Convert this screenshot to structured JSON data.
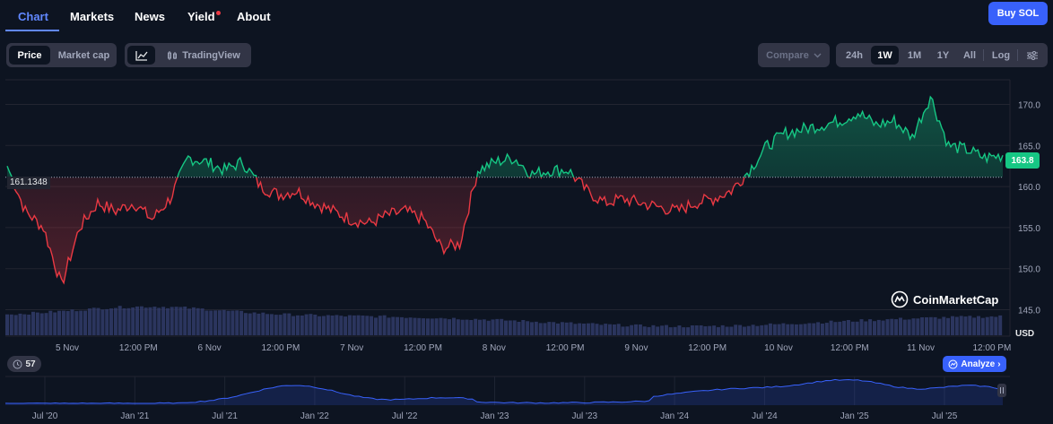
{
  "nav": {
    "tabs": [
      "Chart",
      "Markets",
      "News",
      "Yield",
      "About"
    ],
    "buy_label": "Buy SOL"
  },
  "toolbar": {
    "price_label": "Price",
    "market_cap_label": "Market cap",
    "tradingview_label": "TradingView",
    "compare_label": "Compare",
    "ranges": [
      "24h",
      "1W",
      "1M",
      "1Y",
      "All"
    ],
    "selected_range": "1W",
    "log_label": "Log"
  },
  "chart_data": {
    "type": "area",
    "currency_label": "USD",
    "current_price_label": "163.8",
    "reference_price_label": "161.1348",
    "reference_price": 161.1348,
    "ylim": [
      142,
      173
    ],
    "yticks": [
      145,
      150,
      155,
      160,
      165,
      170
    ],
    "ytick_labels": [
      "145.0",
      "150.0",
      "155.0",
      "160.0",
      "165.0",
      "170.0"
    ],
    "xtick_labels": [
      "5 Nov",
      "12:00 PM",
      "6 Nov",
      "12:00 PM",
      "7 Nov",
      "12:00 PM",
      "8 Nov",
      "12:00 PM",
      "9 Nov",
      "12:00 PM",
      "10 Nov",
      "12:00 PM",
      "11 Nov",
      "12:00 PM"
    ],
    "x": [
      "11-04 18:00",
      "11-04 21:00",
      "11-05 00:00",
      "11-05 03:00",
      "11-05 06:00",
      "11-05 09:00",
      "11-05 12:00",
      "11-05 15:00",
      "11-05 18:00",
      "11-05 21:00",
      "11-06 00:00",
      "11-06 03:00",
      "11-06 06:00",
      "11-06 09:00",
      "11-06 12:00",
      "11-06 15:00",
      "11-06 18:00",
      "11-06 21:00",
      "11-07 00:00",
      "11-07 03:00",
      "11-07 06:00",
      "11-07 09:00",
      "11-07 12:00",
      "11-07 15:00",
      "11-07 18:00",
      "11-07 21:00",
      "11-08 00:00",
      "11-08 03:00",
      "11-08 06:00",
      "11-08 09:00",
      "11-08 12:00",
      "11-08 15:00",
      "11-08 18:00",
      "11-08 21:00",
      "11-09 00:00",
      "11-09 03:00",
      "11-09 06:00",
      "11-09 09:00",
      "11-09 12:00",
      "11-09 15:00",
      "11-09 18:00",
      "11-09 21:00",
      "11-10 00:00",
      "11-10 03:00",
      "11-10 06:00",
      "11-10 09:00",
      "11-10 12:00",
      "11-10 15:00",
      "11-10 18:00",
      "11-10 21:00",
      "11-11 00:00",
      "11-11 03:00",
      "11-11 06:00",
      "11-11 09:00",
      "11-11 12:00",
      "11-11 15:00"
    ],
    "values": [
      162.5,
      157.0,
      155.0,
      148.0,
      155.0,
      158.0,
      157.0,
      158.0,
      156.0,
      158.5,
      163.5,
      163.0,
      162.0,
      163.0,
      160.0,
      159.0,
      159.5,
      158.0,
      157.0,
      156.0,
      155.5,
      156.5,
      157.0,
      156.0,
      152.5,
      153.0,
      162.0,
      163.0,
      163.5,
      161.5,
      162.0,
      162.0,
      159.5,
      158.0,
      158.5,
      158.0,
      157.5,
      157.0,
      158.0,
      158.5,
      159.5,
      162.0,
      165.0,
      166.5,
      167.0,
      167.5,
      168.0,
      169.0,
      167.5,
      168.0,
      166.0,
      171.0,
      165.0,
      164.5,
      163.5,
      163.8
    ]
  },
  "overview": {
    "labels": [
      "Jul '20",
      "Jan '21",
      "Jul '21",
      "Jan '22",
      "Jul '22",
      "Jan '23",
      "Jul '23",
      "Jan '24",
      "Jul '24",
      "Jan '25",
      "Jul '25"
    ],
    "badge_count": "57",
    "analyze_label": "Analyze"
  },
  "watermark": "CoinMarketCap",
  "colors": {
    "up": "#16c784",
    "down": "#ea3943",
    "accent": "#3861fb",
    "background": "#0d1421"
  }
}
